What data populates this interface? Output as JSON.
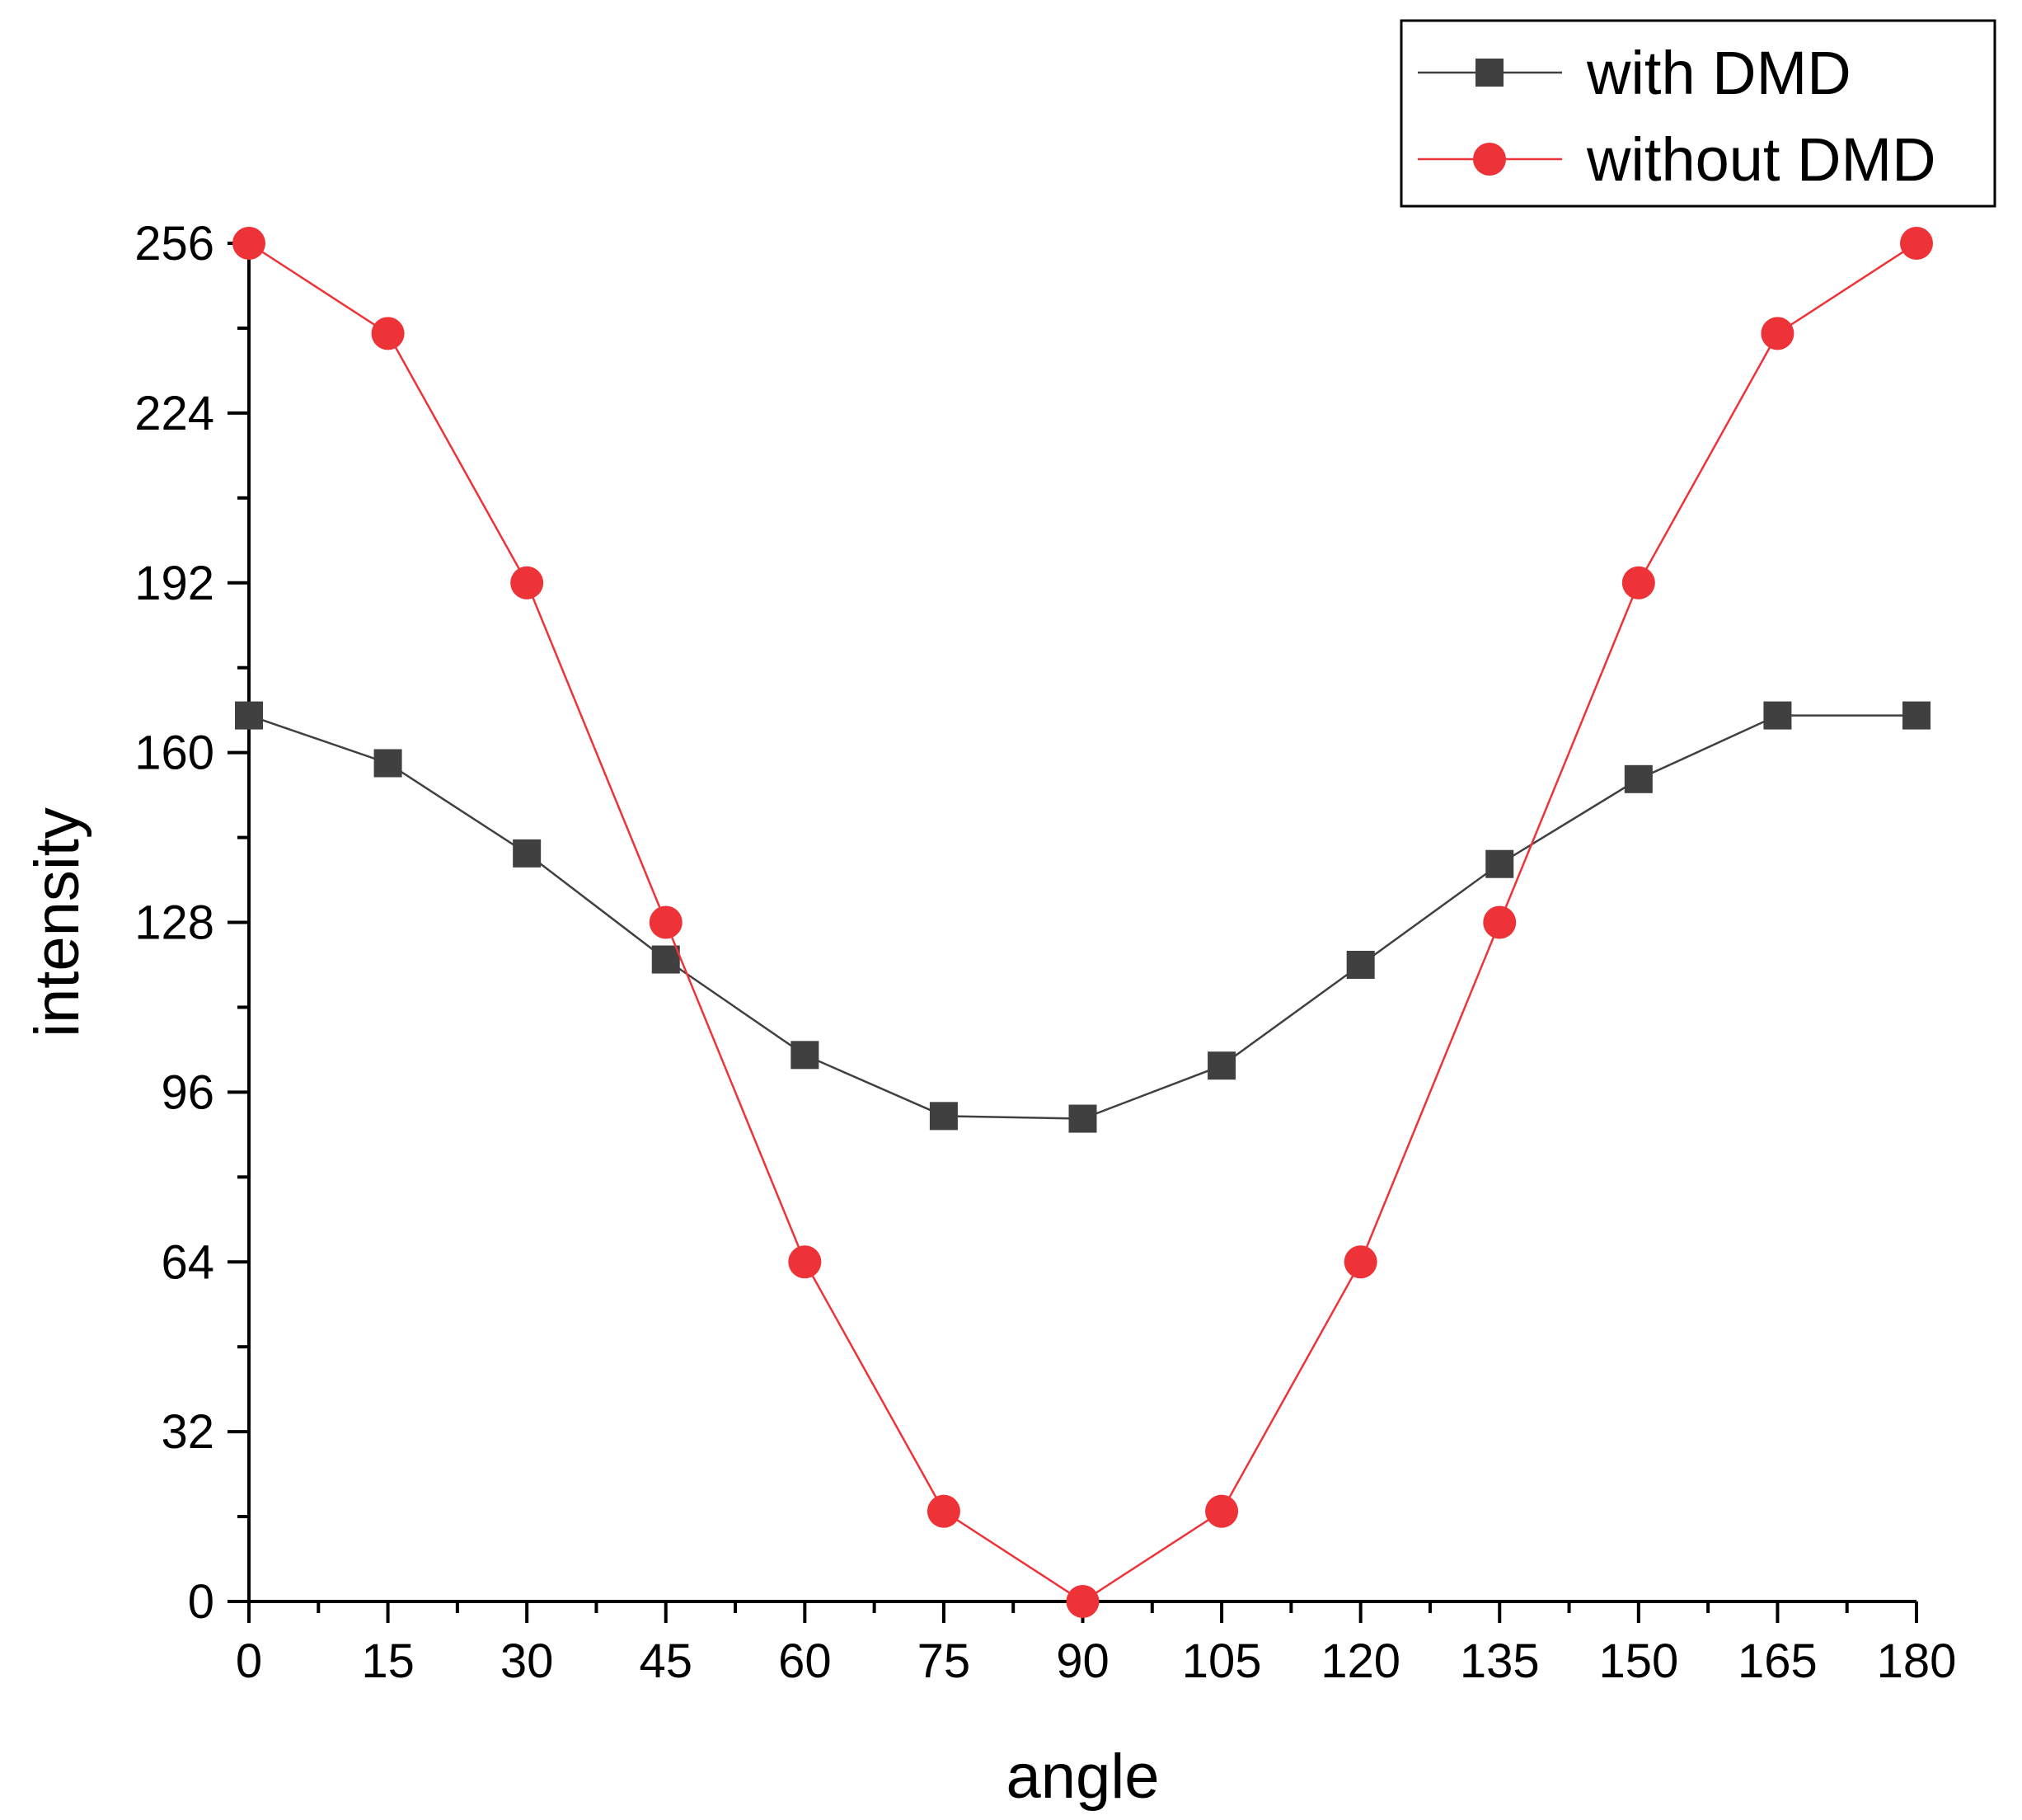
{
  "chart_data": {
    "type": "line",
    "title": "",
    "xlabel": "angle",
    "ylabel": "intensity",
    "x": [
      0,
      15,
      30,
      45,
      60,
      75,
      90,
      105,
      120,
      135,
      150,
      165,
      180
    ],
    "xticks": [
      "0",
      "15",
      "30",
      "45",
      "60",
      "75",
      "90",
      "105",
      "120",
      "135",
      "150",
      "165",
      "180"
    ],
    "yticks": [
      "0",
      "32",
      "64",
      "96",
      "128",
      "160",
      "192",
      "224",
      "256"
    ],
    "xlim": [
      0,
      180
    ],
    "ylim": [
      0,
      256
    ],
    "grid": false,
    "legend_position": "top-right",
    "series": [
      {
        "name": "with DMD",
        "marker": "square",
        "color": "#404040",
        "values": [
          167,
          158,
          141,
          121,
          103,
          91.5,
          91,
          101,
          120,
          139,
          155,
          167,
          167
        ]
      },
      {
        "name": "without DMD",
        "marker": "circle",
        "color": "#ee3338",
        "values": [
          256,
          239,
          192,
          128,
          64,
          17,
          0,
          17,
          64,
          128,
          192,
          239,
          256
        ]
      }
    ]
  }
}
